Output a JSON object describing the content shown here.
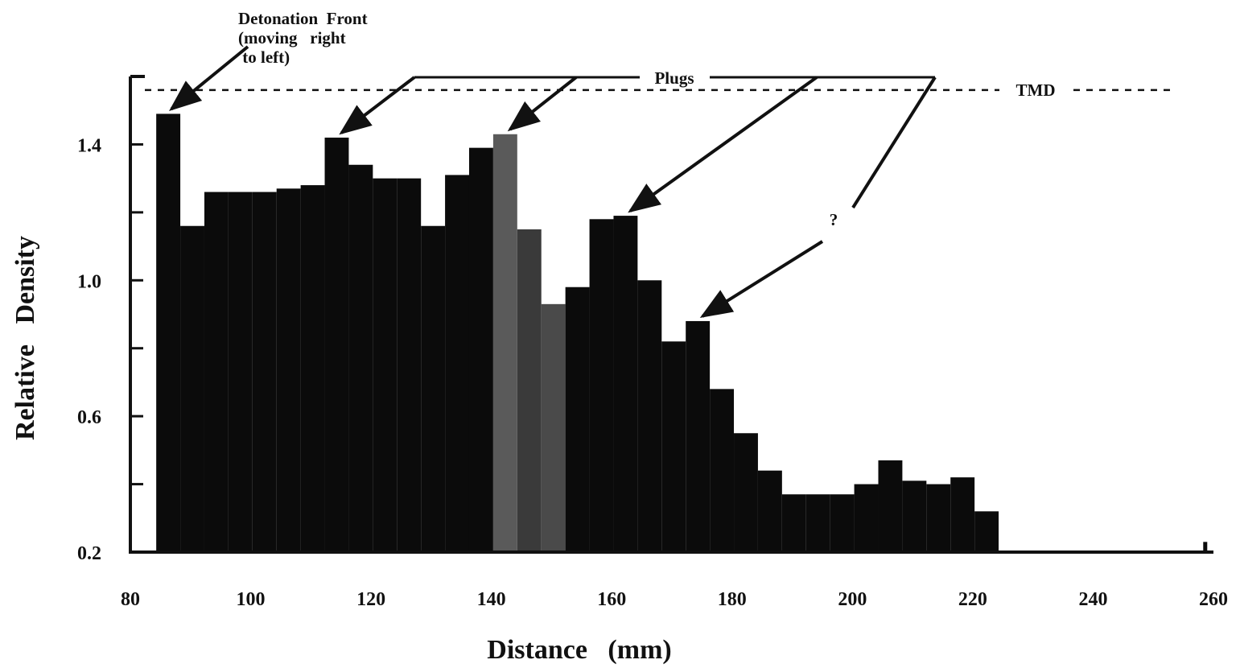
{
  "chart_data": {
    "type": "bar",
    "title": "",
    "xlabel": "Distance   (mm)",
    "ylabel": "Relative   Density",
    "xlim": [
      80,
      260
    ],
    "ylim": [
      0.2,
      1.6
    ],
    "x_ticks": [
      80,
      100,
      120,
      140,
      160,
      180,
      200,
      220,
      240,
      260
    ],
    "x_tick_labels": [
      "80",
      "100",
      "120",
      "140",
      "160",
      "180",
      "200",
      "220",
      "240",
      "260"
    ],
    "y_ticks": [
      0.2,
      0.6,
      1.0,
      1.4
    ],
    "y_tick_labels": [
      "0.2",
      "0.6",
      "1.0",
      "1.4"
    ],
    "grid": false,
    "bin_width": 4,
    "bars": [
      {
        "x0": 84.3,
        "x1": 88.3,
        "value": 1.49,
        "fill": "#0b0b0b"
      },
      {
        "x0": 88.3,
        "x1": 92.3,
        "value": 1.16,
        "fill": "#0b0b0b"
      },
      {
        "x0": 92.3,
        "x1": 96.3,
        "value": 1.26,
        "fill": "#0b0b0b"
      },
      {
        "x0": 96.3,
        "x1": 100.3,
        "value": 1.26,
        "fill": "#0b0b0b"
      },
      {
        "x0": 100.3,
        "x1": 104.3,
        "value": 1.26,
        "fill": "#0b0b0b"
      },
      {
        "x0": 104.3,
        "x1": 108.3,
        "value": 1.27,
        "fill": "#0b0b0b"
      },
      {
        "x0": 108.3,
        "x1": 112.3,
        "value": 1.28,
        "fill": "#0b0b0b"
      },
      {
        "x0": 112.3,
        "x1": 116.3,
        "value": 1.42,
        "fill": "#0b0b0b"
      },
      {
        "x0": 116.3,
        "x1": 120.3,
        "value": 1.34,
        "fill": "#0b0b0b"
      },
      {
        "x0": 120.3,
        "x1": 124.3,
        "value": 1.3,
        "fill": "#0b0b0b"
      },
      {
        "x0": 124.3,
        "x1": 128.3,
        "value": 1.3,
        "fill": "#0b0b0b"
      },
      {
        "x0": 128.3,
        "x1": 132.3,
        "value": 1.16,
        "fill": "#0b0b0b"
      },
      {
        "x0": 132.3,
        "x1": 136.3,
        "value": 1.31,
        "fill": "#0b0b0b"
      },
      {
        "x0": 136.3,
        "x1": 140.3,
        "value": 1.39,
        "fill": "#0b0b0b"
      },
      {
        "x0": 140.3,
        "x1": 144.3,
        "value": 1.43,
        "fill": "#5a5a5a"
      },
      {
        "x0": 144.3,
        "x1": 148.3,
        "value": 1.15,
        "fill": "#3a3a3a"
      },
      {
        "x0": 148.3,
        "x1": 152.3,
        "value": 0.93,
        "fill": "#4a4a4a"
      },
      {
        "x0": 152.3,
        "x1": 156.3,
        "value": 0.98,
        "fill": "#0b0b0b"
      },
      {
        "x0": 156.3,
        "x1": 160.3,
        "value": 1.18,
        "fill": "#0b0b0b"
      },
      {
        "x0": 160.3,
        "x1": 164.3,
        "value": 1.19,
        "fill": "#0b0b0b"
      },
      {
        "x0": 164.3,
        "x1": 168.3,
        "value": 1.0,
        "fill": "#0b0b0b"
      },
      {
        "x0": 168.3,
        "x1": 172.3,
        "value": 0.82,
        "fill": "#0b0b0b"
      },
      {
        "x0": 172.3,
        "x1": 176.3,
        "value": 0.88,
        "fill": "#0b0b0b"
      },
      {
        "x0": 176.3,
        "x1": 180.3,
        "value": 0.68,
        "fill": "#0b0b0b"
      },
      {
        "x0": 180.3,
        "x1": 184.3,
        "value": 0.55,
        "fill": "#0b0b0b"
      },
      {
        "x0": 184.3,
        "x1": 188.3,
        "value": 0.44,
        "fill": "#0b0b0b"
      },
      {
        "x0": 188.3,
        "x1": 192.3,
        "value": 0.37,
        "fill": "#0b0b0b"
      },
      {
        "x0": 192.3,
        "x1": 196.3,
        "value": 0.37,
        "fill": "#0b0b0b"
      },
      {
        "x0": 196.3,
        "x1": 200.3,
        "value": 0.37,
        "fill": "#0b0b0b"
      },
      {
        "x0": 200.3,
        "x1": 204.3,
        "value": 0.4,
        "fill": "#0b0b0b"
      },
      {
        "x0": 204.3,
        "x1": 208.3,
        "value": 0.47,
        "fill": "#0b0b0b"
      },
      {
        "x0": 208.3,
        "x1": 212.3,
        "value": 0.41,
        "fill": "#0b0b0b"
      },
      {
        "x0": 212.3,
        "x1": 216.3,
        "value": 0.4,
        "fill": "#0b0b0b"
      },
      {
        "x0": 216.3,
        "x1": 220.3,
        "value": 0.42,
        "fill": "#0b0b0b"
      },
      {
        "x0": 220.3,
        "x1": 224.3,
        "value": 0.32,
        "fill": "#0b0b0b"
      }
    ],
    "reference_lines": [
      {
        "label": "TMD",
        "y": 1.56,
        "style": "dashed"
      }
    ],
    "annotations": [
      {
        "text_lines": [
          "Detonation  Front",
          "(moving   right",
          " to left)"
        ],
        "points_to": {
          "x": 86.3,
          "y": 1.49
        }
      },
      {
        "text": "Plugs",
        "points_to": [
          {
            "x": 114.3,
            "y": 1.42
          },
          {
            "x": 142.3,
            "y": 1.43
          },
          {
            "x": 162.3,
            "y": 1.19
          }
        ]
      },
      {
        "text": "?",
        "points_to": {
          "x": 174.3,
          "y": 0.88
        }
      }
    ]
  }
}
